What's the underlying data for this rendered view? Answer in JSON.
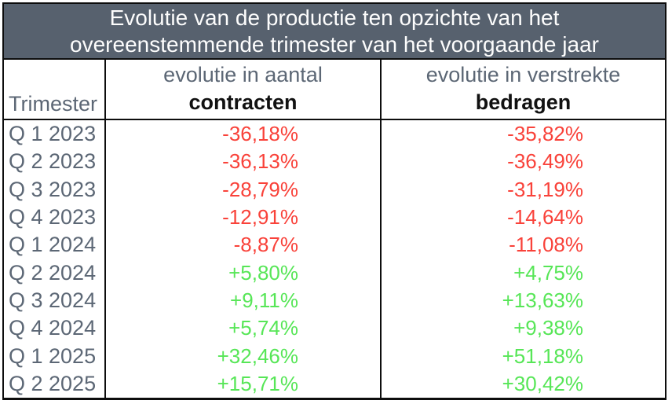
{
  "table": {
    "title_lines": [
      "Evolutie van de productie ten opzichte van het",
      "overeenstemmende trimester van het voorgaande jaar"
    ],
    "columns": {
      "trimester_label": "Trimester",
      "contracten_line1": "evolutie in aantal",
      "contracten_line2": "contracten",
      "bedragen_line1": "evolutie in verstrekte",
      "bedragen_line2": "bedragen"
    },
    "rows": [
      {
        "trimester": "Q 1 2023",
        "contracten": "-36,18%",
        "bedragen": "-35,82%",
        "trend": "negative"
      },
      {
        "trimester": "Q 2 2023",
        "contracten": "-36,13%",
        "bedragen": "-36,49%",
        "trend": "negative"
      },
      {
        "trimester": "Q 3 2023",
        "contracten": "-28,79%",
        "bedragen": "-31,19%",
        "trend": "negative"
      },
      {
        "trimester": "Q 4 2023",
        "contracten": "-12,91%",
        "bedragen": "-14,64%",
        "trend": "negative"
      },
      {
        "trimester": "Q 1 2024",
        "contracten": "-8,87%",
        "bedragen": "-11,08%",
        "trend": "negative"
      },
      {
        "trimester": "Q 2 2024",
        "contracten": "+5,80%",
        "bedragen": "+4,75%",
        "trend": "positive"
      },
      {
        "trimester": "Q 3 2024",
        "contracten": "+9,11%",
        "bedragen": "+13,63%",
        "trend": "positive"
      },
      {
        "trimester": "Q 4 2024",
        "contracten": "+5,74%",
        "bedragen": "+9,38%",
        "trend": "positive"
      },
      {
        "trimester": "Q 1 2025",
        "contracten": "+32,46%",
        "bedragen": "+51,18%",
        "trend": "positive"
      },
      {
        "trimester": "Q 2 2025",
        "contracten": "+15,71%",
        "bedragen": "+30,42%",
        "trend": "positive"
      }
    ]
  },
  "colors": {
    "title_bg": "#57616e",
    "title_text": "#fdfdfd",
    "label_text": "#5c6775",
    "header_bold_text": "#111111",
    "negative": "#f9423a",
    "positive": "#57e657",
    "border": "#0d0d0d"
  },
  "chart_data": {
    "type": "table",
    "title": "Evolutie van de productie ten opzichte van het overeenstemmende trimester van het voorgaande jaar",
    "categories": [
      "Q 1 2023",
      "Q 2 2023",
      "Q 3 2023",
      "Q 4 2023",
      "Q 1 2024",
      "Q 2 2024",
      "Q 3 2024",
      "Q 4 2024",
      "Q 1 2025",
      "Q 2 2025"
    ],
    "series": [
      {
        "name": "evolutie in aantal contracten",
        "values": [
          -36.18,
          -36.13,
          -28.79,
          -12.91,
          -8.87,
          5.8,
          9.11,
          5.74,
          32.46,
          15.71
        ]
      },
      {
        "name": "evolutie in verstrekte bedragen",
        "values": [
          -35.82,
          -36.49,
          -31.19,
          -14.64,
          -11.08,
          4.75,
          13.63,
          9.38,
          51.18,
          30.42
        ]
      }
    ],
    "unit": "%",
    "value_color_rule": "negative values red, positive values green"
  }
}
